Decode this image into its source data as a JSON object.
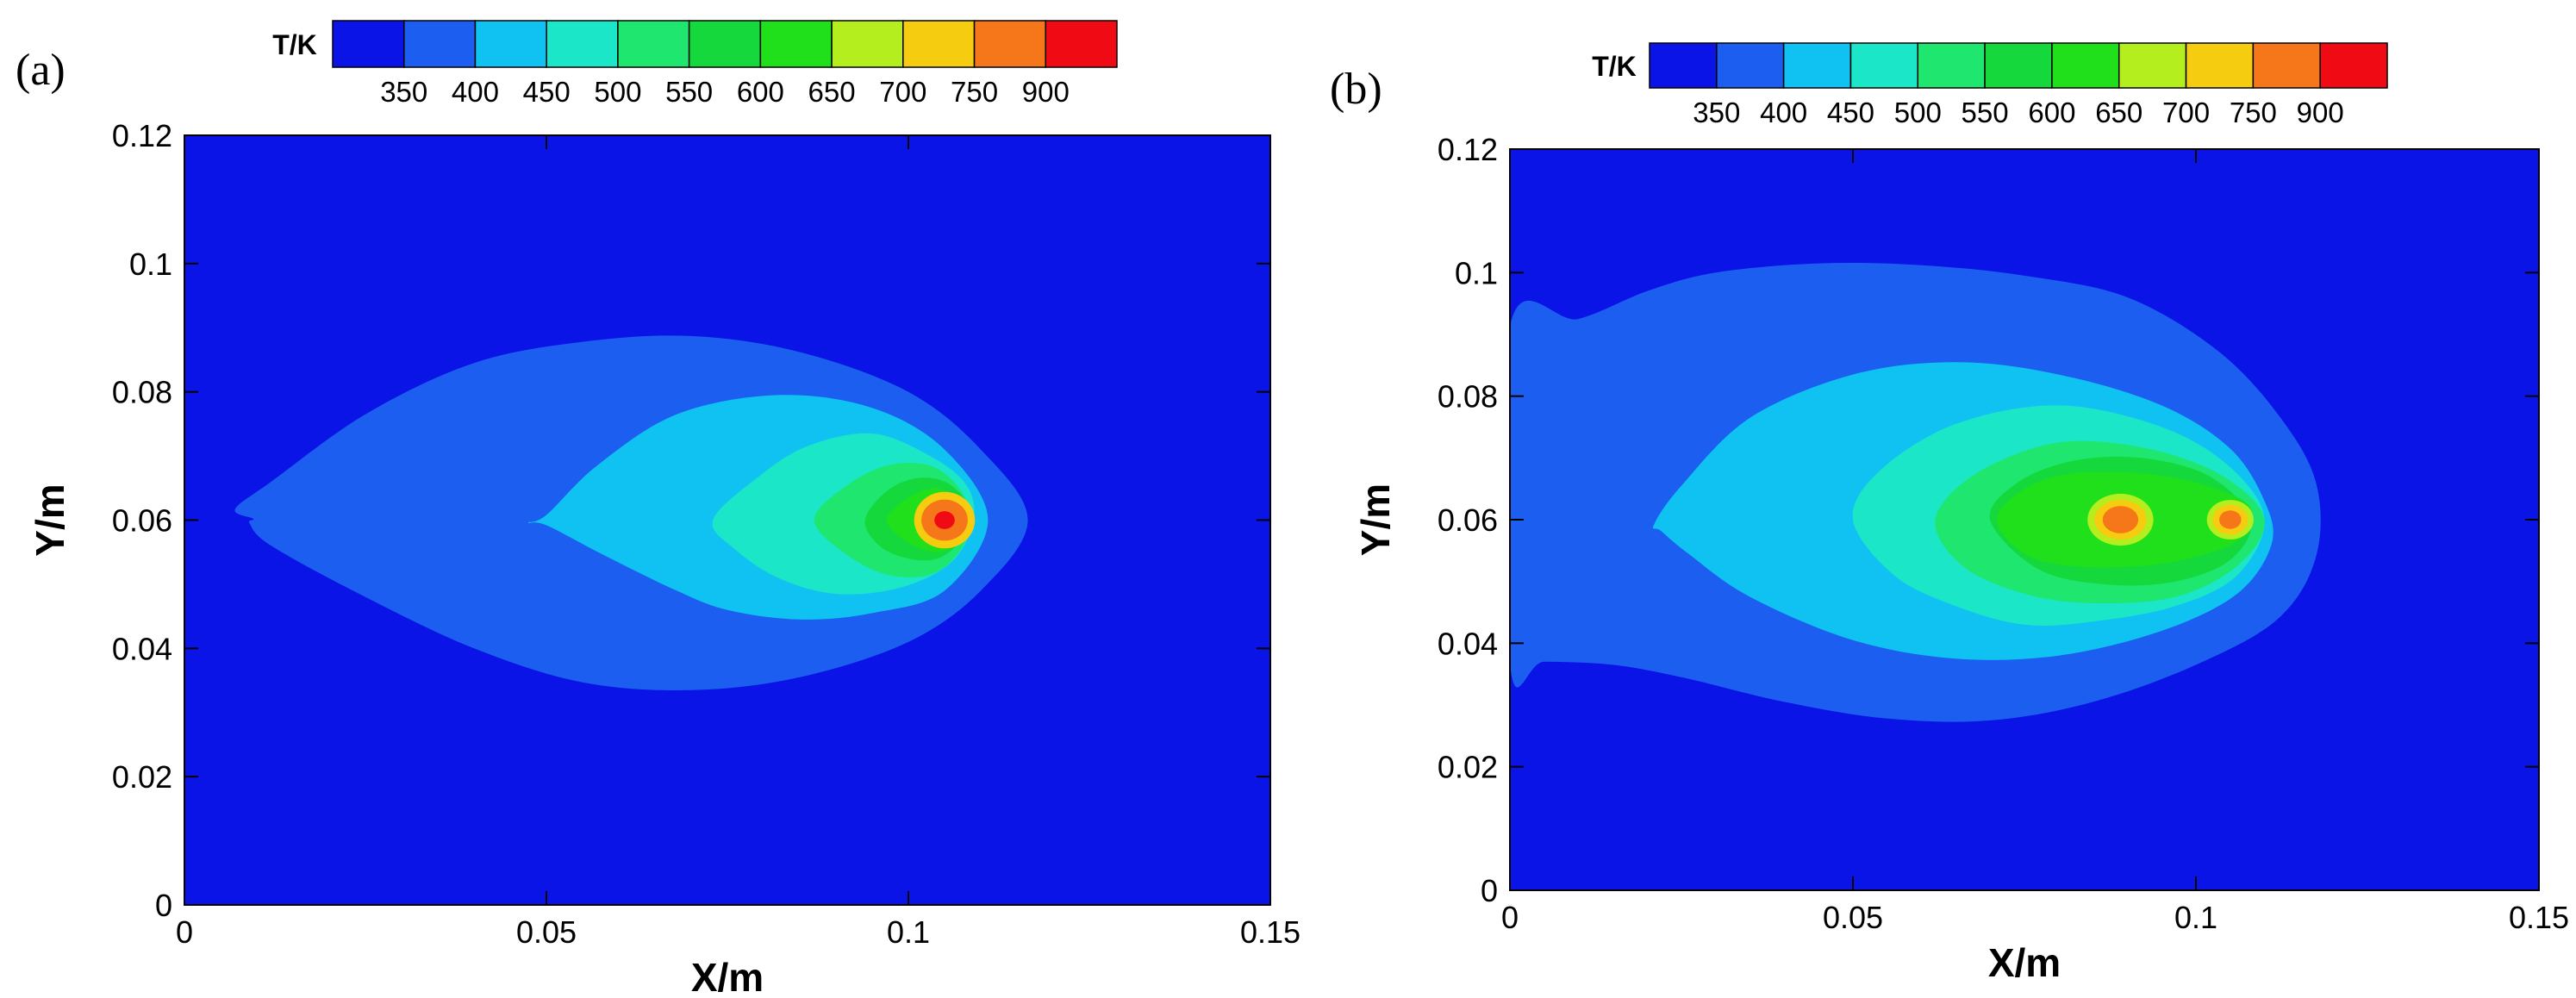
{
  "chart_data": [
    {
      "type": "heatmap",
      "panel_label": "(a)",
      "xlabel": "X/m",
      "ylabel": "Y/m",
      "xlim": [
        0,
        0.15
      ],
      "ylim": [
        0,
        0.12
      ],
      "xticks": [
        0,
        0.05,
        0.1,
        0.15
      ],
      "xtick_labels": [
        "0",
        "0.05",
        "0.1",
        "0.15"
      ],
      "yticks": [
        0,
        0.02,
        0.04,
        0.06,
        0.08,
        0.1,
        0.12
      ],
      "ytick_labels": [
        "0",
        "0.02",
        "0.04",
        "0.06",
        "0.08",
        "0.1",
        "0.12"
      ],
      "colorbar": {
        "title": "T/K",
        "levels": [
          "350",
          "400",
          "450",
          "500",
          "550",
          "600",
          "650",
          "700",
          "750",
          "900"
        ],
        "colors": [
          "#0a14e6",
          "#1c5ef0",
          "#10c2f2",
          "#1ce6c8",
          "#1ee66e",
          "#14d83c",
          "#20e01c",
          "#b4ee1e",
          "#f6cc10",
          "#f6761a",
          "#f00a14"
        ]
      },
      "contours": [
        {
          "level": 1,
          "points": [
            [
              0.007,
              0.0617
            ],
            [
              0.012,
              0.066
            ],
            [
              0.025,
              0.0765
            ],
            [
              0.04,
              0.0845
            ],
            [
              0.055,
              0.0878
            ],
            [
              0.07,
              0.0887
            ],
            [
              0.085,
              0.0862
            ],
            [
              0.1,
              0.08
            ],
            [
              0.11,
              0.071
            ],
            [
              0.1165,
              0.06
            ],
            [
              0.11,
              0.049
            ],
            [
              0.1,
              0.041
            ],
            [
              0.085,
              0.0355
            ],
            [
              0.07,
              0.0335
            ],
            [
              0.055,
              0.0347
            ],
            [
              0.04,
              0.04
            ],
            [
              0.025,
              0.048
            ],
            [
              0.012,
              0.056
            ],
            [
              0.009,
              0.0595
            ],
            [
              0.0095,
              0.0602
            ]
          ]
        },
        {
          "level": 2,
          "points": [
            [
              0.0475,
              0.0596
            ],
            [
              0.05,
              0.0608
            ],
            [
              0.057,
              0.0685
            ],
            [
              0.068,
              0.0765
            ],
            [
              0.082,
              0.0795
            ],
            [
              0.095,
              0.0775
            ],
            [
              0.105,
              0.071
            ],
            [
              0.111,
              0.06
            ],
            [
              0.105,
              0.049
            ],
            [
              0.095,
              0.0455
            ],
            [
              0.085,
              0.0445
            ],
            [
              0.075,
              0.046
            ],
            [
              0.068,
              0.049
            ],
            [
              0.058,
              0.0545
            ],
            [
              0.05,
              0.0592
            ]
          ]
        },
        {
          "level": 3,
          "points": [
            [
              0.073,
              0.06
            ],
            [
              0.079,
              0.0665
            ],
            [
              0.086,
              0.0715
            ],
            [
              0.095,
              0.0735
            ],
            [
              0.103,
              0.07
            ],
            [
              0.108,
              0.0655
            ],
            [
              0.109,
              0.06
            ],
            [
              0.106,
              0.0535
            ],
            [
              0.099,
              0.0495
            ],
            [
              0.09,
              0.0485
            ],
            [
              0.082,
              0.051
            ],
            [
              0.076,
              0.0555
            ]
          ]
        },
        {
          "level": 4,
          "points": [
            [
              0.087,
              0.06
            ],
            [
              0.091,
              0.065
            ],
            [
              0.097,
              0.0685
            ],
            [
              0.103,
              0.0685
            ],
            [
              0.107,
              0.065
            ],
            [
              0.1085,
              0.06
            ],
            [
              0.107,
              0.055
            ],
            [
              0.103,
              0.0515
            ],
            [
              0.097,
              0.0515
            ],
            [
              0.091,
              0.055
            ]
          ]
        },
        {
          "level": 5,
          "points": [
            [
              0.094,
              0.06
            ],
            [
              0.097,
              0.0645
            ],
            [
              0.101,
              0.0665
            ],
            [
              0.105,
              0.066
            ],
            [
              0.108,
              0.063
            ],
            [
              0.1085,
              0.06
            ],
            [
              0.107,
              0.0565
            ],
            [
              0.104,
              0.054
            ],
            [
              0.1,
              0.054
            ],
            [
              0.096,
              0.056
            ]
          ]
        },
        {
          "level": 6,
          "points": [
            [
              0.097,
              0.06
            ],
            [
              0.1,
              0.0635
            ],
            [
              0.104,
              0.065
            ],
            [
              0.107,
              0.0625
            ],
            [
              0.108,
              0.06
            ],
            [
              0.107,
              0.0565
            ],
            [
              0.104,
              0.055
            ],
            [
              0.1,
              0.0565
            ]
          ]
        }
      ],
      "hot_spots": [
        {
          "x": 0.105,
          "y": 0.06,
          "rings": [
            [
              0.0042,
              0.0044,
              8
            ],
            [
              0.0032,
              0.0032,
              9
            ],
            [
              0.0014,
              0.0014,
              10
            ]
          ]
        }
      ]
    },
    {
      "type": "heatmap",
      "panel_label": "(b)",
      "xlabel": "X/m",
      "ylabel": "Y/m",
      "xlim": [
        0,
        0.15
      ],
      "ylim": [
        0,
        0.12
      ],
      "xticks": [
        0,
        0.05,
        0.1,
        0.15
      ],
      "xtick_labels": [
        "0",
        "0.05",
        "0.1",
        "0.15"
      ],
      "yticks": [
        0,
        0.02,
        0.04,
        0.06,
        0.08,
        0.1,
        0.12
      ],
      "ytick_labels": [
        "0",
        "0.02",
        "0.04",
        "0.06",
        "0.08",
        "0.1",
        "0.12"
      ],
      "colorbar": {
        "title": "T/K",
        "levels": [
          "350",
          "400",
          "450",
          "500",
          "550",
          "600",
          "650",
          "700",
          "750",
          "900"
        ],
        "colors": [
          "#0a14e6",
          "#1c5ef0",
          "#10c2f2",
          "#1ce6c8",
          "#1ee66e",
          "#14d83c",
          "#20e01c",
          "#b4ee1e",
          "#f6cc10",
          "#f6761a",
          "#f00a14"
        ]
      },
      "contours": [
        {
          "level": 1,
          "points": [
            [
              0,
              0.0912
            ],
            [
              0.01,
              0.0925
            ],
            [
              0.02,
              0.097
            ],
            [
              0.03,
              0.1
            ],
            [
              0.045,
              0.1015
            ],
            [
              0.06,
              0.1012
            ],
            [
              0.075,
              0.0995
            ],
            [
              0.09,
              0.096
            ],
            [
              0.103,
              0.0875
            ],
            [
              0.112,
              0.077
            ],
            [
              0.1175,
              0.066
            ],
            [
              0.1175,
              0.054
            ],
            [
              0.112,
              0.044
            ],
            [
              0.1,
              0.0365
            ],
            [
              0.085,
              0.0305
            ],
            [
              0.07,
              0.0275
            ],
            [
              0.055,
              0.0278
            ],
            [
              0.04,
              0.0305
            ],
            [
              0.025,
              0.0345
            ],
            [
              0.015,
              0.0365
            ],
            [
              0.005,
              0.037
            ],
            [
              0,
              0.0368
            ]
          ]
        },
        {
          "level": 2,
          "points": [
            [
              0.021,
              0.0592
            ],
            [
              0.025,
              0.0655
            ],
            [
              0.035,
              0.0765
            ],
            [
              0.05,
              0.0835
            ],
            [
              0.065,
              0.0855
            ],
            [
              0.08,
              0.0835
            ],
            [
              0.095,
              0.0785
            ],
            [
              0.105,
              0.0715
            ],
            [
              0.11,
              0.063
            ],
            [
              0.111,
              0.056
            ],
            [
              0.106,
              0.048
            ],
            [
              0.095,
              0.042
            ],
            [
              0.08,
              0.038
            ],
            [
              0.065,
              0.0375
            ],
            [
              0.05,
              0.0405
            ],
            [
              0.035,
              0.0475
            ],
            [
              0.026,
              0.0545
            ],
            [
              0.022,
              0.0582
            ]
          ]
        },
        {
          "level": 3,
          "points": [
            [
              0.05,
              0.06
            ],
            [
              0.054,
              0.068
            ],
            [
              0.065,
              0.0755
            ],
            [
              0.08,
              0.0785
            ],
            [
              0.095,
              0.075
            ],
            [
              0.105,
              0.0685
            ],
            [
              0.11,
              0.06
            ],
            [
              0.106,
              0.051
            ],
            [
              0.097,
              0.046
            ],
            [
              0.085,
              0.0435
            ],
            [
              0.075,
              0.043
            ],
            [
              0.065,
              0.046
            ],
            [
              0.056,
              0.051
            ]
          ]
        },
        {
          "level": 4,
          "points": [
            [
              0.062,
              0.06
            ],
            [
              0.068,
              0.0675
            ],
            [
              0.08,
              0.0725
            ],
            [
              0.093,
              0.0715
            ],
            [
              0.104,
              0.067
            ],
            [
              0.11,
              0.06
            ],
            [
              0.106,
              0.0525
            ],
            [
              0.097,
              0.0475
            ],
            [
              0.085,
              0.0465
            ],
            [
              0.075,
              0.048
            ],
            [
              0.066,
              0.0525
            ]
          ]
        },
        {
          "level": 5,
          "points": [
            [
              0.07,
              0.06
            ],
            [
              0.074,
              0.066
            ],
            [
              0.082,
              0.0695
            ],
            [
              0.092,
              0.07
            ],
            [
              0.102,
              0.067
            ],
            [
              0.108,
              0.06
            ],
            [
              0.105,
              0.0535
            ],
            [
              0.097,
              0.05
            ],
            [
              0.087,
              0.0495
            ],
            [
              0.077,
              0.052
            ]
          ]
        },
        {
          "level": 6,
          "points": [
            [
              0.071,
              0.06
            ],
            [
              0.075,
              0.065
            ],
            [
              0.082,
              0.0675
            ],
            [
              0.092,
              0.0675
            ],
            [
              0.1,
              0.066
            ],
            [
              0.107,
              0.063
            ],
            [
              0.108,
              0.06
            ],
            [
              0.106,
              0.0565
            ],
            [
              0.1,
              0.054
            ],
            [
              0.092,
              0.0525
            ],
            [
              0.082,
              0.0525
            ],
            [
              0.075,
              0.0545
            ]
          ]
        }
      ],
      "hot_spots": [
        {
          "x": 0.089,
          "y": 0.06,
          "rings": [
            [
              0.0048,
              0.0042,
              7
            ],
            [
              0.0038,
              0.0032,
              8
            ],
            [
              0.0026,
              0.0022,
              9
            ]
          ]
        },
        {
          "x": 0.105,
          "y": 0.06,
          "rings": [
            [
              0.0034,
              0.0032,
              7
            ],
            [
              0.0026,
              0.0024,
              8
            ],
            [
              0.0016,
              0.0015,
              9
            ]
          ]
        }
      ]
    }
  ]
}
